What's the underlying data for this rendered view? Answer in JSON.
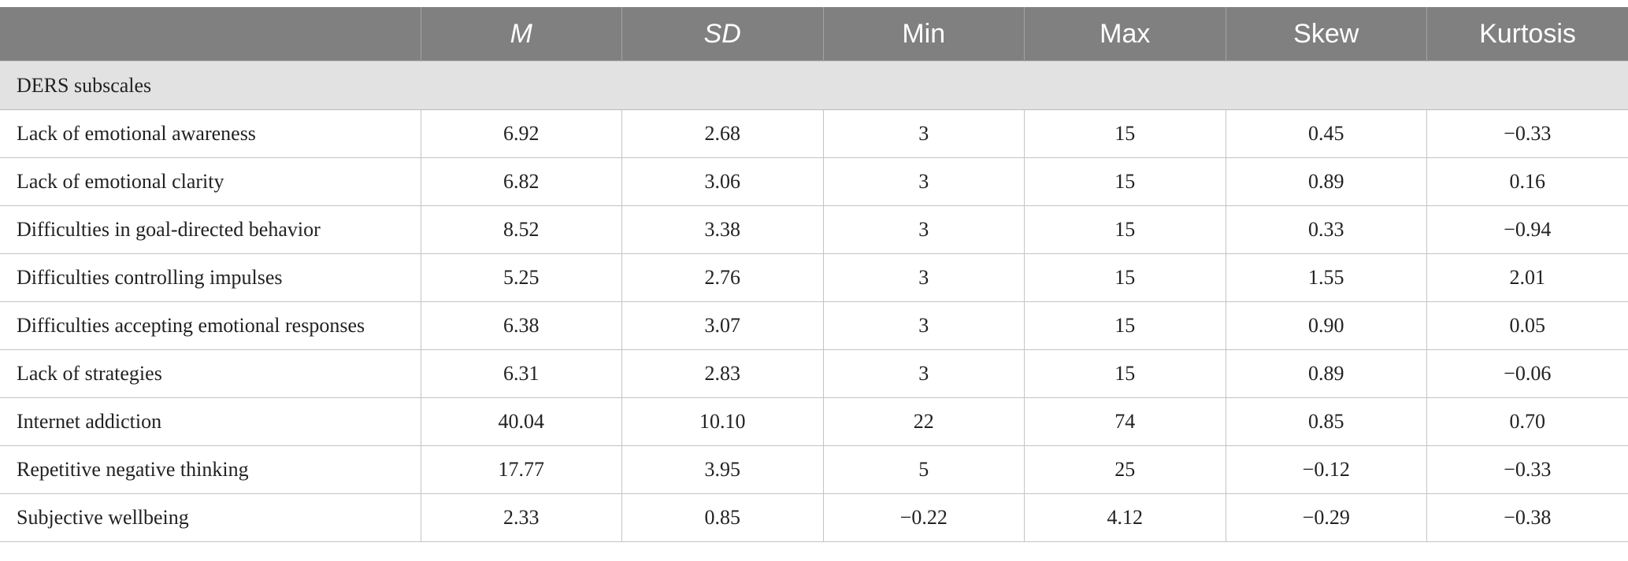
{
  "table": {
    "columns": [
      "",
      "M",
      "SD",
      "Min",
      "Max",
      "Skew",
      "Kurtosis"
    ],
    "section_label": "DERS subscales",
    "rows": [
      {
        "label": "Lack of emotional awareness",
        "values": [
          "6.92",
          "2.68",
          "3",
          "15",
          "0.45",
          "−0.33"
        ]
      },
      {
        "label": "Lack of emotional clarity",
        "values": [
          "6.82",
          "3.06",
          "3",
          "15",
          "0.89",
          "0.16"
        ]
      },
      {
        "label": "Difficulties in goal-directed behavior",
        "values": [
          "8.52",
          "3.38",
          "3",
          "15",
          "0.33",
          "−0.94"
        ]
      },
      {
        "label": "Difficulties controlling impulses",
        "values": [
          "5.25",
          "2.76",
          "3",
          "15",
          "1.55",
          "2.01"
        ]
      },
      {
        "label": "Difficulties accepting emotional responses",
        "values": [
          "6.38",
          "3.07",
          "3",
          "15",
          "0.90",
          "0.05"
        ]
      },
      {
        "label": "Lack of strategies",
        "values": [
          "6.31",
          "2.83",
          "3",
          "15",
          "0.89",
          "−0.06"
        ]
      },
      {
        "label": "Internet addiction",
        "values": [
          "40.04",
          "10.10",
          "22",
          "74",
          "0.85",
          "0.70"
        ]
      },
      {
        "label": "Repetitive negative thinking",
        "values": [
          "17.77",
          "3.95",
          "5",
          "25",
          "−0.12",
          "−0.33"
        ]
      },
      {
        "label": "Subjective wellbeing",
        "values": [
          "2.33",
          "0.85",
          "−0.22",
          "4.12",
          "−0.29",
          "−0.38"
        ]
      }
    ]
  },
  "colors": {
    "header_bg": "#808080",
    "header_text": "#ffffff",
    "section_bg": "#e3e2e3",
    "grid_line": "#c4c4c4"
  }
}
